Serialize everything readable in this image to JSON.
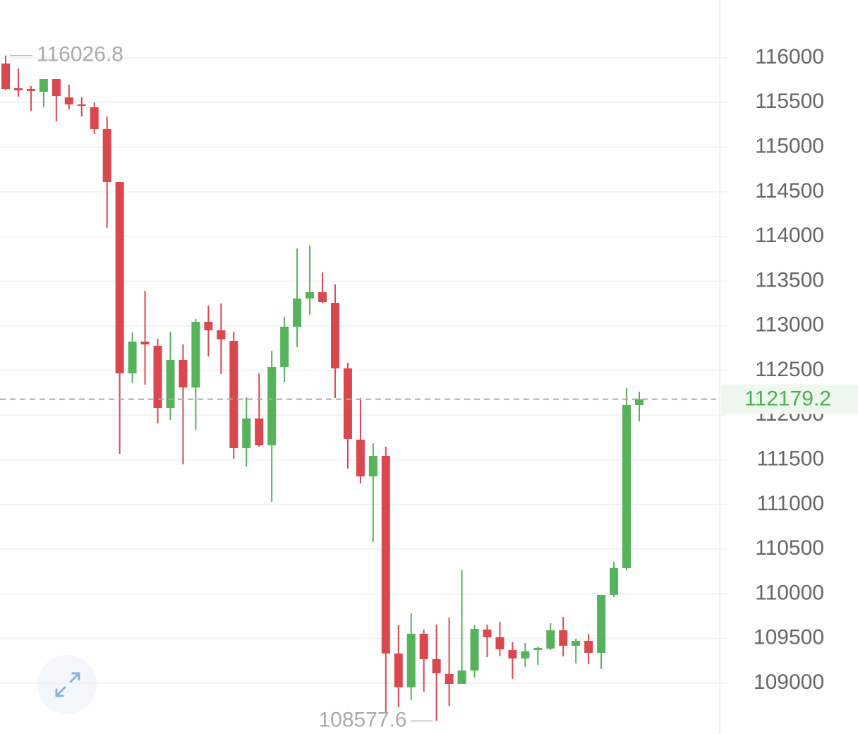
{
  "chart_data": {
    "type": "candlestick",
    "up_color": "#57b25c",
    "down_color": "#d9474f",
    "price_color": "#4caf50",
    "open": [
      115937,
      115660,
      115652,
      115621,
      115763,
      115558,
      115479,
      115447,
      115202,
      114610,
      112468,
      112824,
      112777,
      112081,
      112619,
      112310,
      113045,
      112950,
      112832,
      111631,
      111963,
      111663,
      112540,
      112990,
      113306,
      113377,
      113258,
      112524,
      111726,
      111315,
      111544,
      109332,
      108953,
      109553,
      109269,
      109103,
      108992,
      109142,
      109600,
      109514,
      109371,
      109277,
      109371,
      109387,
      109592,
      109419,
      109474,
      109340,
      109988,
      110288,
      112113
    ],
    "high": [
      116026.8,
      115881,
      115684,
      115763,
      115763,
      115700,
      115558,
      115502,
      115344,
      114610,
      112927,
      113393,
      112856,
      112935,
      112792,
      113077,
      113227,
      113251,
      112935,
      112200,
      112468,
      112721,
      113100,
      113867,
      113898,
      113598,
      113464,
      112587,
      112192,
      111686,
      111647,
      109648,
      109782,
      109600,
      109656,
      109735,
      110264,
      109648,
      109656,
      109687,
      109458,
      109450,
      109411,
      109672,
      109743,
      109498,
      109553,
      109988,
      110359,
      112303,
      112263
    ],
    "low": [
      115637,
      115565,
      115407,
      115447,
      115289,
      115423,
      115344,
      115147,
      114096,
      111568,
      112358,
      112342,
      111907,
      111947,
      111449,
      111836,
      112658,
      112460,
      111512,
      111425,
      111647,
      111030,
      112374,
      112761,
      113124,
      113258,
      112192,
      111402,
      111236,
      110580,
      108668,
      108731,
      108810,
      108905,
      108577.6,
      108747,
      108992,
      109063,
      109292,
      109300,
      109047,
      109182,
      109205,
      109371,
      109300,
      109221,
      109213,
      109158,
      109964,
      110264,
      111931
    ],
    "close": [
      115652,
      115637,
      115629,
      115763,
      115573,
      115479,
      115463,
      115202,
      114610,
      112468,
      112824,
      112792,
      112081,
      112619,
      112310,
      113045,
      112950,
      112848,
      111631,
      111963,
      111663,
      112540,
      112990,
      113306,
      113377,
      113266,
      112524,
      111734,
      111315,
      111544,
      109332,
      108953,
      109553,
      109269,
      109111,
      108992,
      109142,
      109608,
      109514,
      109379,
      109277,
      109356,
      109395,
      109592,
      109419,
      109474,
      109340,
      109988,
      110288,
      112113,
      112179.2
    ],
    "ylim": [
      108431,
      116648
    ],
    "yticks": [
      109000,
      109500,
      110000,
      110500,
      111000,
      111500,
      112000,
      112500,
      113000,
      113500,
      114000,
      114500,
      115000,
      115500,
      116000
    ],
    "grid": true
  }
}
